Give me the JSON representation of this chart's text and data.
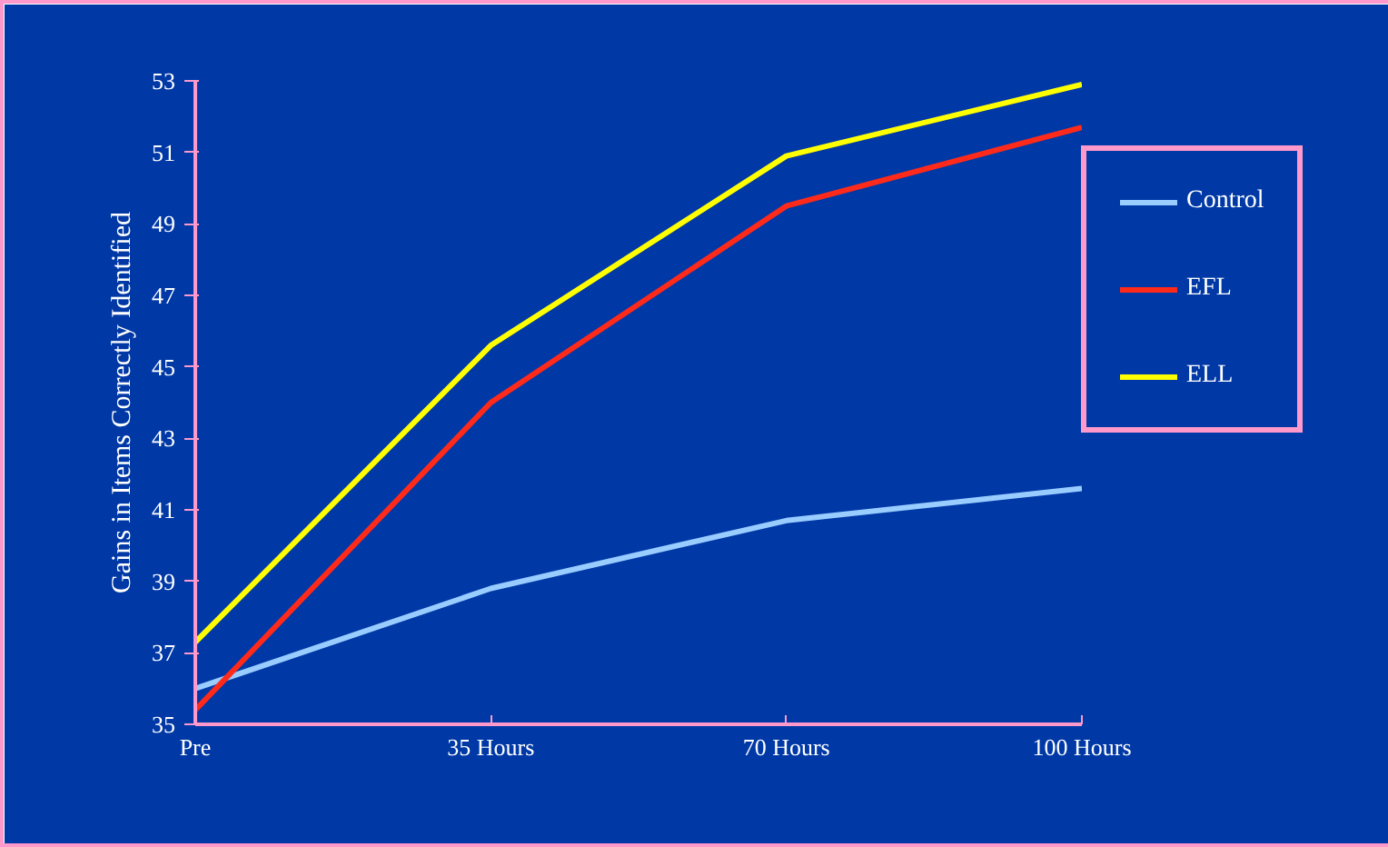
{
  "chart_data": {
    "type": "line",
    "ylabel": "Gains in Items Correctly Identified",
    "categories": [
      "Pre",
      "35 Hours",
      "70 Hours",
      "100 Hours"
    ],
    "series": [
      {
        "name": "Control",
        "color": "#99ccff",
        "values": [
          36.0,
          38.8,
          40.7,
          41.6
        ]
      },
      {
        "name": "EFL",
        "color": "#ff2a1a",
        "values": [
          35.4,
          44.0,
          49.5,
          51.7
        ]
      },
      {
        "name": "ELL",
        "color": "#ffff00",
        "values": [
          37.3,
          45.6,
          50.9,
          52.9
        ]
      }
    ],
    "ylim": [
      35,
      53
    ],
    "yticks": [
      35,
      37,
      39,
      41,
      43,
      45,
      47,
      49,
      51,
      53
    ],
    "grid": false,
    "legend": "right",
    "marker": "none",
    "line_style": "solid"
  }
}
